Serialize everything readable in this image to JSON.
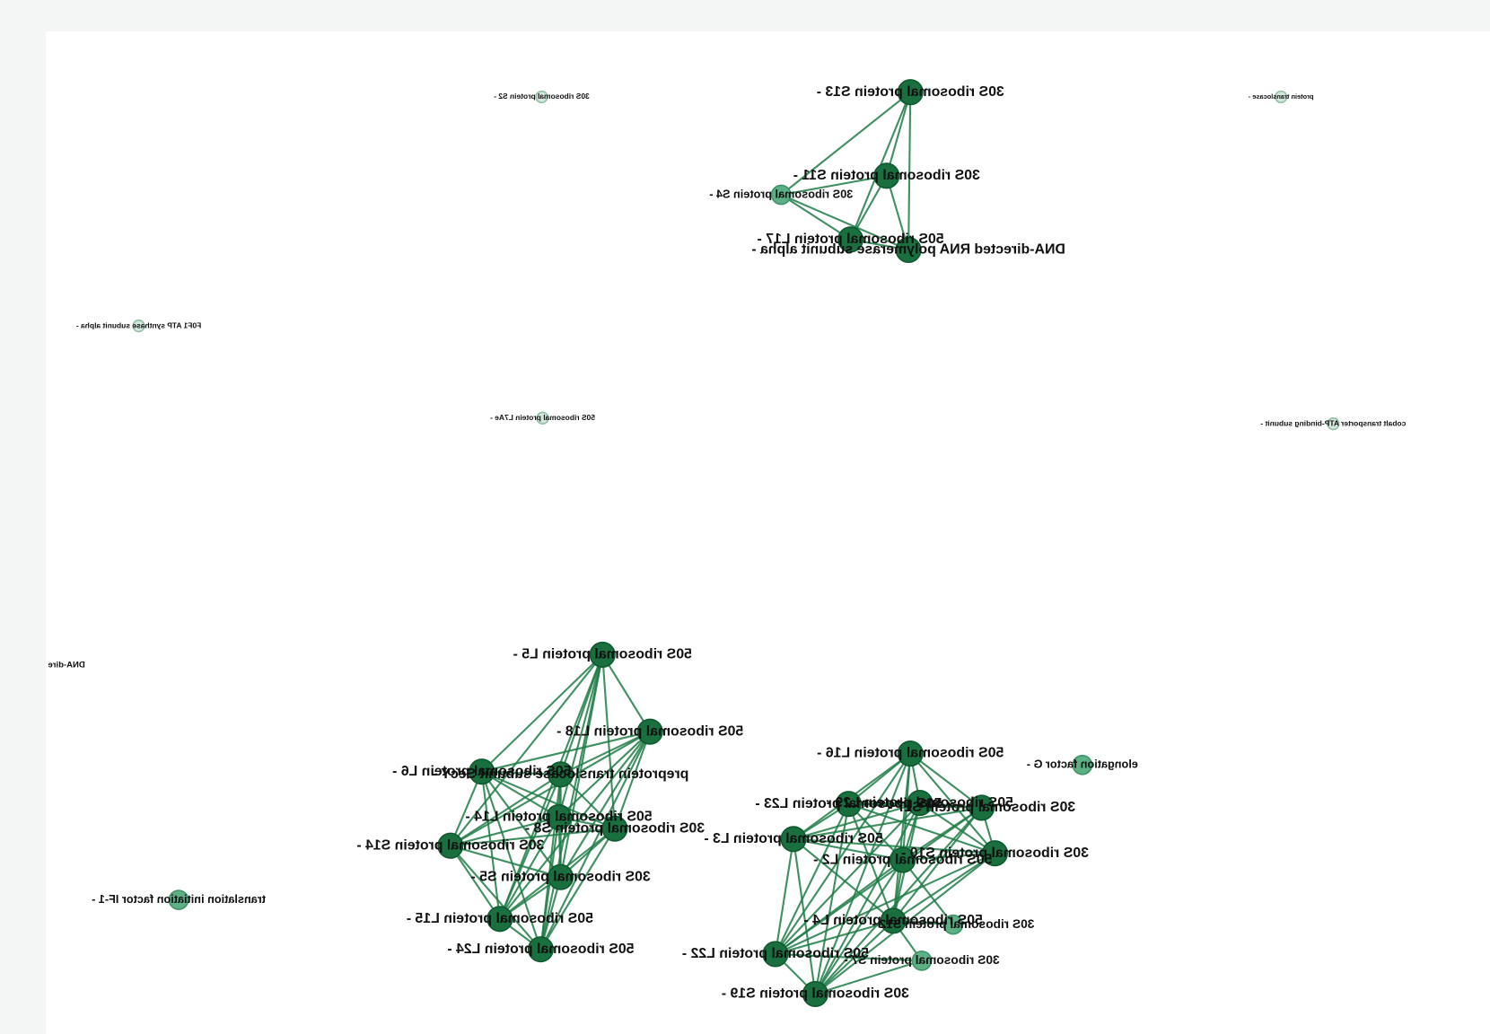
{
  "nodes": [
    {
      "label": "30S ribosomal protein S13 -"
    },
    {
      "label": "30S ribosomal protein S11 -"
    },
    {
      "label": "30S ribosomal protein S4 -"
    },
    {
      "label": "50S ribosomal protein L17 -"
    },
    {
      "label": "DNA-directed RNA polymerase subunit alpha -"
    },
    {
      "label": "30S ribosomal protein S2 -"
    },
    {
      "label": "protein translocase -"
    },
    {
      "label": "F0F1 ATP synthase subunit alpha -"
    },
    {
      "label": "50S ribosomal protein L7Ae -"
    },
    {
      "label": "cobalt transporter ATP-binding subunit -"
    },
    {
      "label": "DNA-dire"
    },
    {
      "label": "translation initiation factor IF-1 -"
    },
    {
      "label": "elongation factor G -"
    },
    {
      "label": "50S ribosomal protein L5 -"
    },
    {
      "label": "50S ribosomal protein L18 -"
    },
    {
      "label": "50S ribosomal protein L6 -"
    },
    {
      "label": "preprotein translocase subunit SecY -"
    },
    {
      "label": "50S ribosomal protein L14 -"
    },
    {
      "label": "30S ribosomal protein S8 -"
    },
    {
      "label": "30S ribosomal protein S14 -"
    },
    {
      "label": "30S ribosomal protein S5 -"
    },
    {
      "label": "50S ribosomal protein L15 -"
    },
    {
      "label": "50S ribosomal protein L24 -"
    },
    {
      "label": "50S ribosomal protein L16 -"
    },
    {
      "label": "50S ribosomal protein L23 -"
    },
    {
      "label": "50S ribosomal protein L29 -"
    },
    {
      "label": "30S ribosomal protein S17 -"
    },
    {
      "label": "50S ribosomal protein L3 -"
    },
    {
      "label": "50S ribosomal protein L2 -"
    },
    {
      "label": "30S ribosomal protein S10 -"
    },
    {
      "label": "50S ribosomal protein L4 -"
    },
    {
      "label": "30S ribosomal protein S12 -"
    },
    {
      "label": "50S ribosomal protein L22 -"
    },
    {
      "label": "30S ribosomal protein S7 -"
    },
    {
      "label": "30S ribosomal protein S19 -"
    }
  ]
}
